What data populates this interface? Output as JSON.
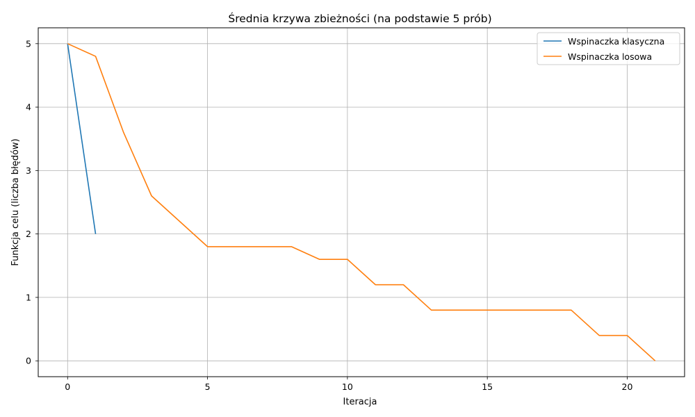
{
  "chart_data": {
    "type": "line",
    "title": "Średnia krzywa zbieżności (na podstawie 5 prób)",
    "xlabel": "Iteracja",
    "ylabel": "Funkcja celu (liczba błędów)",
    "xlim": [
      -1.05,
      22.05
    ],
    "ylim": [
      -0.25,
      5.25
    ],
    "xticks": [
      0,
      5,
      10,
      15,
      20
    ],
    "yticks": [
      0,
      1,
      2,
      3,
      4,
      5
    ],
    "grid": true,
    "legend_position": "top-right",
    "series": [
      {
        "name": "Wspinaczka klasyczna",
        "color": "#1f77b4",
        "x": [
          0,
          1
        ],
        "y": [
          5.0,
          2.0
        ]
      },
      {
        "name": "Wspinaczka losowa",
        "color": "#ff7f0e",
        "x": [
          0,
          1,
          2,
          3,
          4,
          5,
          6,
          7,
          8,
          9,
          10,
          11,
          12,
          13,
          14,
          15,
          16,
          17,
          18,
          19,
          20,
          21
        ],
        "y": [
          5.0,
          4.8,
          3.6,
          2.6,
          2.2,
          1.8,
          1.8,
          1.8,
          1.8,
          1.6,
          1.6,
          1.2,
          1.2,
          0.8,
          0.8,
          0.8,
          0.8,
          0.8,
          0.8,
          0.4,
          0.4,
          0.0
        ]
      }
    ]
  }
}
